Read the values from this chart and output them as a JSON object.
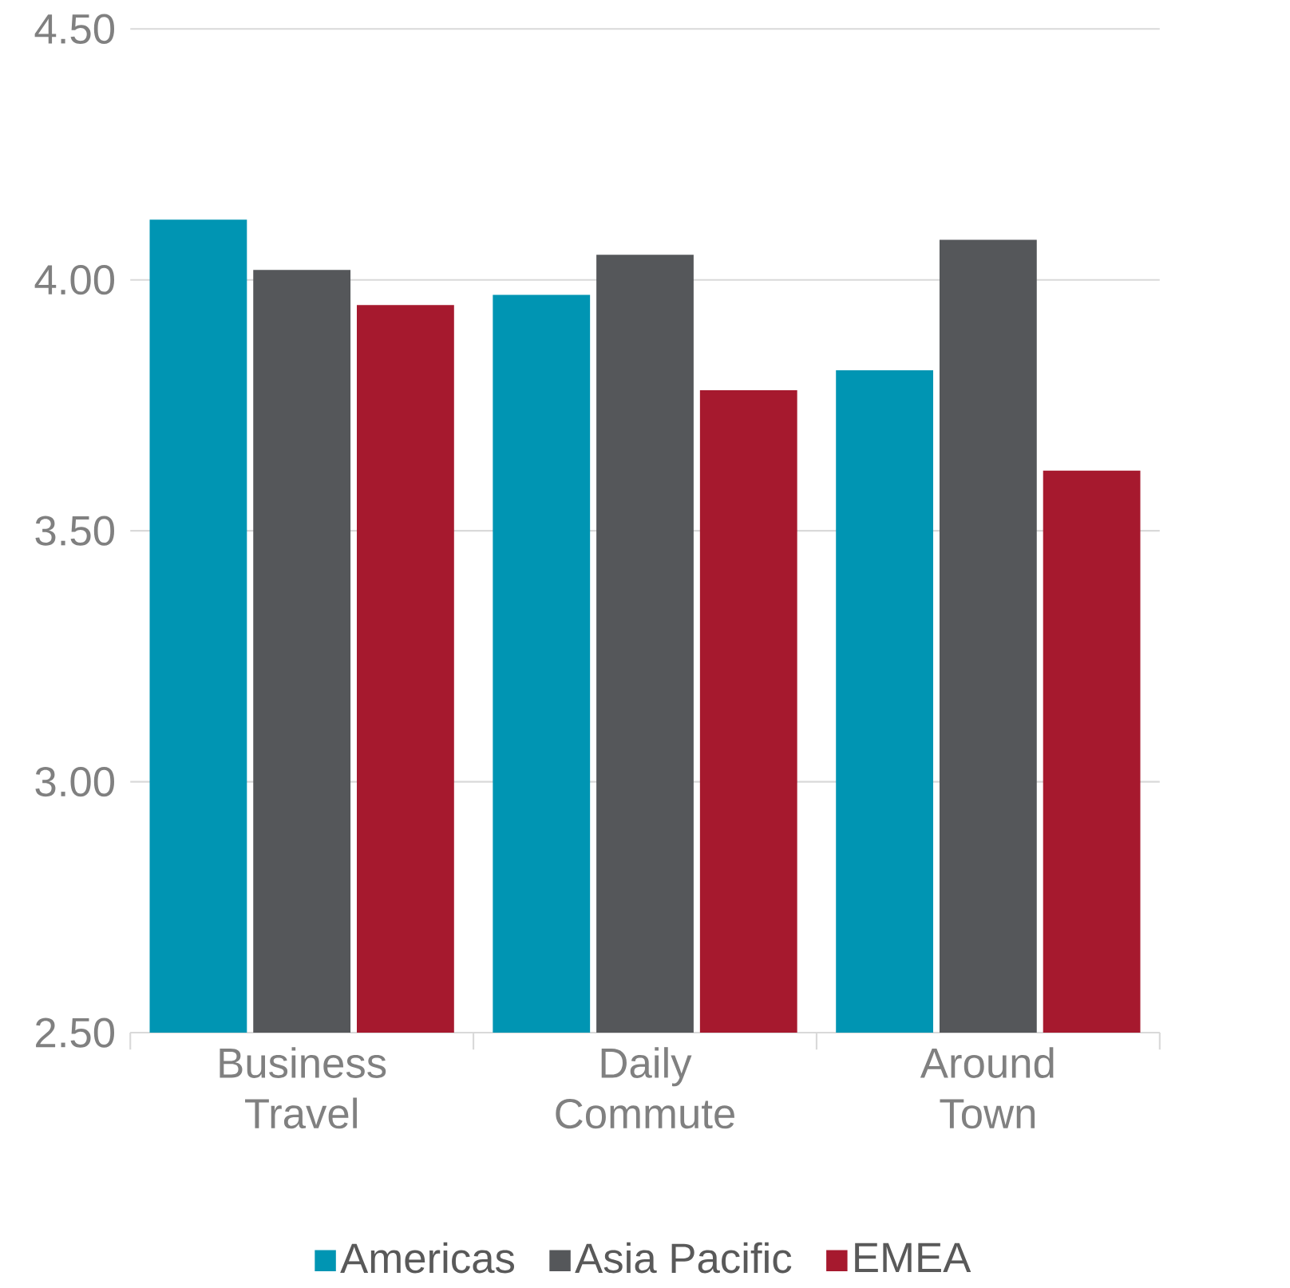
{
  "chart_data": {
    "type": "bar",
    "categories": [
      "Business Travel",
      "Daily Commute",
      "Around Town"
    ],
    "series": [
      {
        "name": "Americas",
        "color": "#0095b3",
        "values": [
          4.12,
          3.97,
          3.82
        ]
      },
      {
        "name": "Asia Pacific",
        "color": "#55575a",
        "values": [
          4.02,
          4.05,
          4.08
        ]
      },
      {
        "name": "EMEA",
        "color": "#a6192e",
        "values": [
          3.95,
          3.78,
          3.62
        ]
      }
    ],
    "ylim": [
      2.5,
      4.5
    ],
    "yticks": [
      {
        "value": 2.5,
        "label": "2.50"
      },
      {
        "value": 3.0,
        "label": "3.00"
      },
      {
        "value": 3.5,
        "label": "3.50"
      },
      {
        "value": 4.0,
        "label": "4.00"
      },
      {
        "value": 4.5,
        "label": "4.50"
      }
    ],
    "grid": "y",
    "legend": "bottom"
  }
}
